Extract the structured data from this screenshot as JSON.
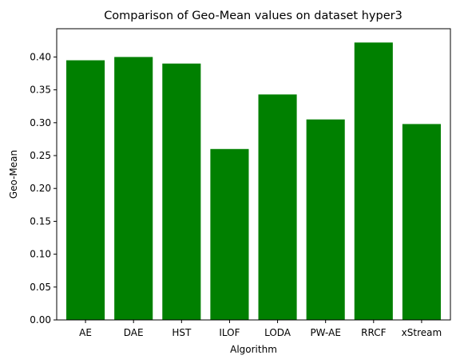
{
  "chart_data": {
    "type": "bar",
    "title": "Comparison of Geo-Mean values on dataset hyper3",
    "xlabel": "Algorithm",
    "ylabel": "Geo-Mean",
    "categories": [
      "AE",
      "DAE",
      "HST",
      "ILOF",
      "LODA",
      "PW-AE",
      "RRCF",
      "xStream"
    ],
    "values": [
      0.395,
      0.4,
      0.39,
      0.26,
      0.343,
      0.305,
      0.422,
      0.298
    ],
    "ylim": [
      0,
      0.443
    ],
    "yticks": [
      "0.00",
      "0.05",
      "0.10",
      "0.15",
      "0.20",
      "0.25",
      "0.30",
      "0.35",
      "0.40"
    ],
    "bar_color": "#008000",
    "grid": false,
    "legend": "none"
  }
}
